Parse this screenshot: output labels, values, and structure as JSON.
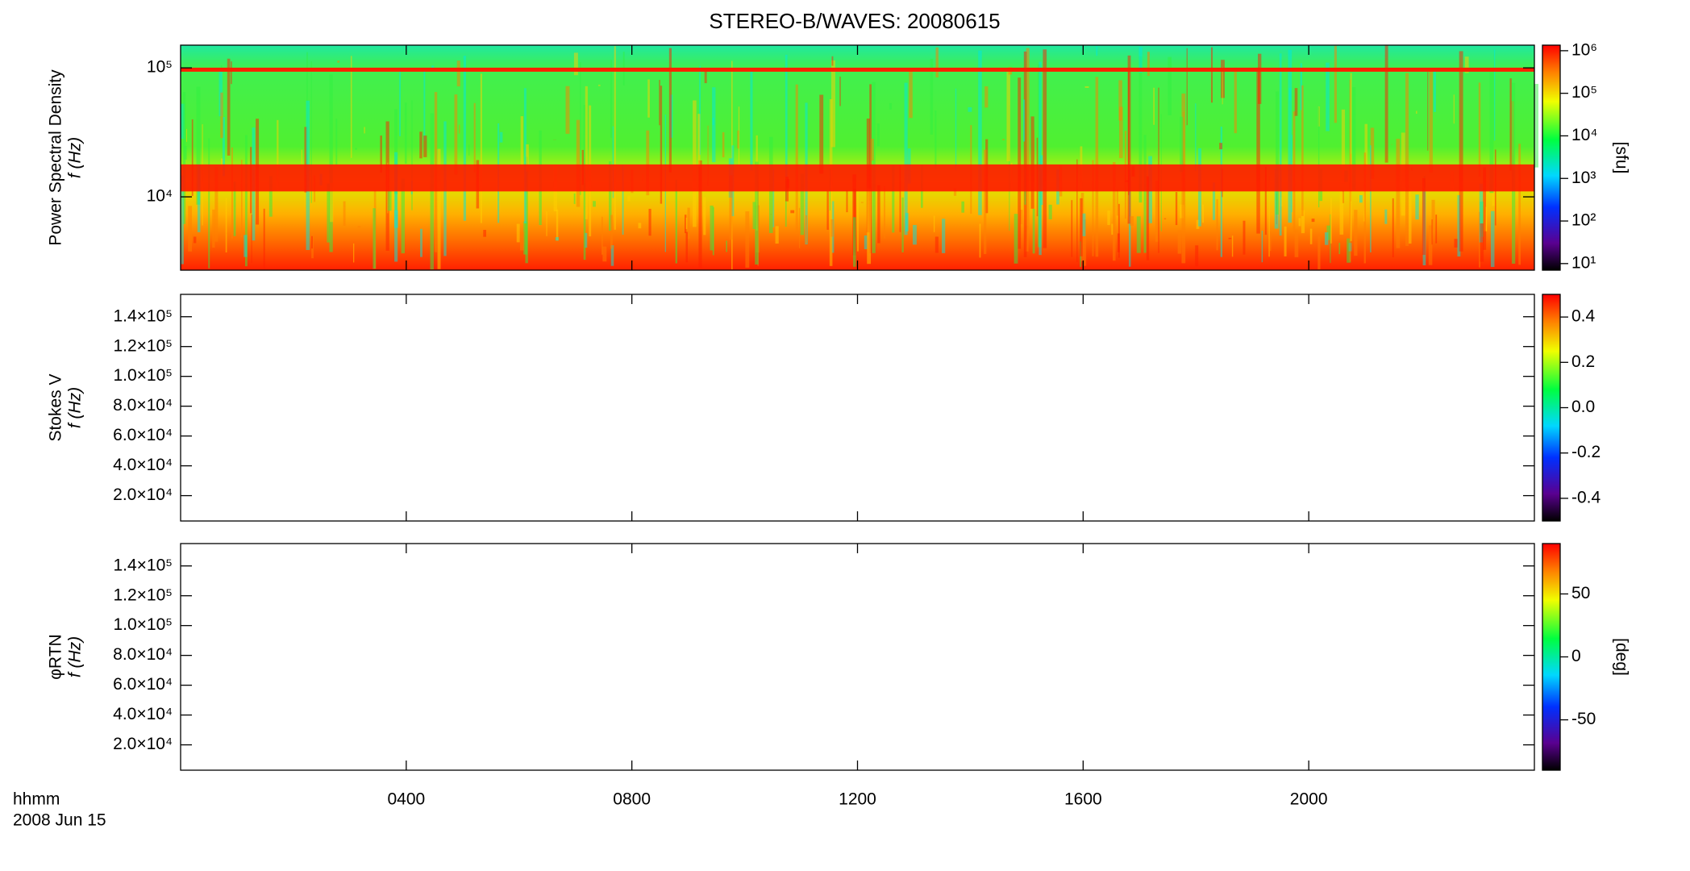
{
  "title": "STEREO-B/WAVES: 20080615",
  "x_axis": {
    "label": "hhmm",
    "date": "2008 Jun 15",
    "xlim": [
      0,
      24
    ],
    "xticks": [
      {
        "value": 4,
        "label": "0400"
      },
      {
        "value": 8,
        "label": "0800"
      },
      {
        "value": 12,
        "label": "1200"
      },
      {
        "value": 16,
        "label": "1600"
      },
      {
        "value": 20,
        "label": "2000"
      }
    ]
  },
  "chart_data": [
    {
      "type": "heatmap",
      "ylabel": "Power Spectral Density",
      "ylabel2": "f (Hz)",
      "log": true,
      "ylim": [
        2700,
        150000
      ],
      "yticks": [
        {
          "value": 10000,
          "label": "10⁴"
        },
        {
          "value": 100000,
          "label": "10⁵"
        }
      ],
      "colorbar": {
        "label": "[sfu]",
        "log": true,
        "zlim": [
          7,
          1350000
        ],
        "zticks": [
          {
            "value": 10,
            "label": "10¹"
          },
          {
            "value": 100,
            "label": "10²"
          },
          {
            "value": 1000,
            "label": "10³"
          },
          {
            "value": 10000,
            "label": "10⁴"
          },
          {
            "value": 100000,
            "label": "10⁵"
          },
          {
            "value": 1000000,
            "label": "10⁶"
          }
        ]
      }
    },
    {
      "type": "heatmap",
      "ylabel": "Stokes V",
      "ylabel2": "f (Hz)",
      "log": false,
      "ylim": [
        3000,
        155000
      ],
      "yticks": [
        {
          "value": 20000,
          "label": "2.0×10⁴"
        },
        {
          "value": 40000,
          "label": "4.0×10⁴"
        },
        {
          "value": 60000,
          "label": "6.0×10⁴"
        },
        {
          "value": 80000,
          "label": "8.0×10⁴"
        },
        {
          "value": 100000,
          "label": "1.0×10⁵"
        },
        {
          "value": 120000,
          "label": "1.2×10⁵"
        },
        {
          "value": 140000,
          "label": "1.4×10⁵"
        }
      ],
      "colorbar": {
        "label": null,
        "log": false,
        "zlim": [
          -0.5,
          0.5
        ],
        "zticks": [
          -0.4,
          -0.2,
          {
            "value": 0,
            "label": "0.0"
          },
          0.2,
          0.4
        ]
      }
    },
    {
      "type": "heatmap",
      "ylabel": "φRTN",
      "ylabel2": "f (Hz)",
      "log": false,
      "ylim": [
        3000,
        155000
      ],
      "yticks": [
        {
          "value": 20000,
          "label": "2.0×10⁴"
        },
        {
          "value": 40000,
          "label": "4.0×10⁴"
        },
        {
          "value": 60000,
          "label": "6.0×10⁴"
        },
        {
          "value": 80000,
          "label": "8.0×10⁴"
        },
        {
          "value": 100000,
          "label": "1.0×10⁵"
        },
        {
          "value": 120000,
          "label": "1.2×10⁵"
        },
        {
          "value": 140000,
          "label": "1.4×10⁵"
        }
      ],
      "colorbar": {
        "label": "[deg]",
        "log": false,
        "zlim": [
          -90,
          90
        ],
        "zticks": [
          -50,
          0,
          50
        ]
      }
    }
  ]
}
